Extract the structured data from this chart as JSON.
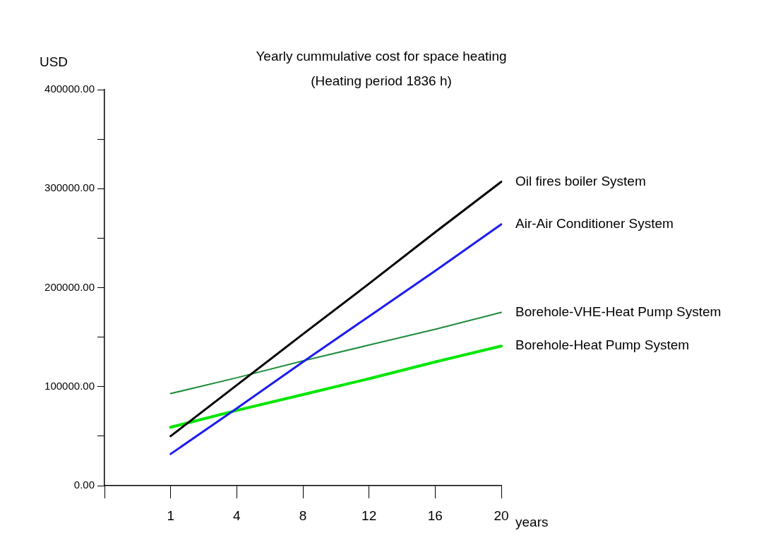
{
  "chart_data": {
    "type": "line",
    "title": "Yearly cummulative cost for space heating",
    "subtitle": "(Heating period 1836 h)",
    "ylabel": "USD",
    "xlabel": "years",
    "categories": [
      null,
      "1",
      "4",
      "8",
      "12",
      "16",
      "20"
    ],
    "series": [
      {
        "name": "Oil fires boiler System",
        "color": "#000000",
        "values": [
          null,
          50000,
          101500,
          153000,
          204000,
          256000,
          307000
        ]
      },
      {
        "name": "Air-Air Conditioner System",
        "color": "#1c1cf0",
        "values": [
          null,
          32000,
          78000,
          125000,
          171000,
          217000,
          264000
        ]
      },
      {
        "name": "Borehole-VHE-Heat Pump System",
        "color": "#1e8c3c",
        "values": [
          null,
          93000,
          109000,
          126000,
          142000,
          158000,
          175000
        ]
      },
      {
        "name": "Borehole-Heat Pump System",
        "color": "#00e600",
        "values": [
          null,
          59000,
          76000,
          92000,
          108000,
          125000,
          141000
        ]
      }
    ],
    "ylim": [
      0,
      400000
    ],
    "yticks": [
      {
        "value": 0,
        "label": "0.00"
      },
      {
        "value": 50000,
        "label": null
      },
      {
        "value": 100000,
        "label": "100000.00"
      },
      {
        "value": 150000,
        "label": null
      },
      {
        "value": 200000,
        "label": "200000.00"
      },
      {
        "value": 250000,
        "label": null
      },
      {
        "value": 300000,
        "label": "300000.00"
      },
      {
        "value": 350000,
        "label": null
      },
      {
        "value": 400000,
        "label": "400000.00"
      }
    ],
    "grid": false,
    "legend": false,
    "marker": "none",
    "line_style": "solid"
  }
}
